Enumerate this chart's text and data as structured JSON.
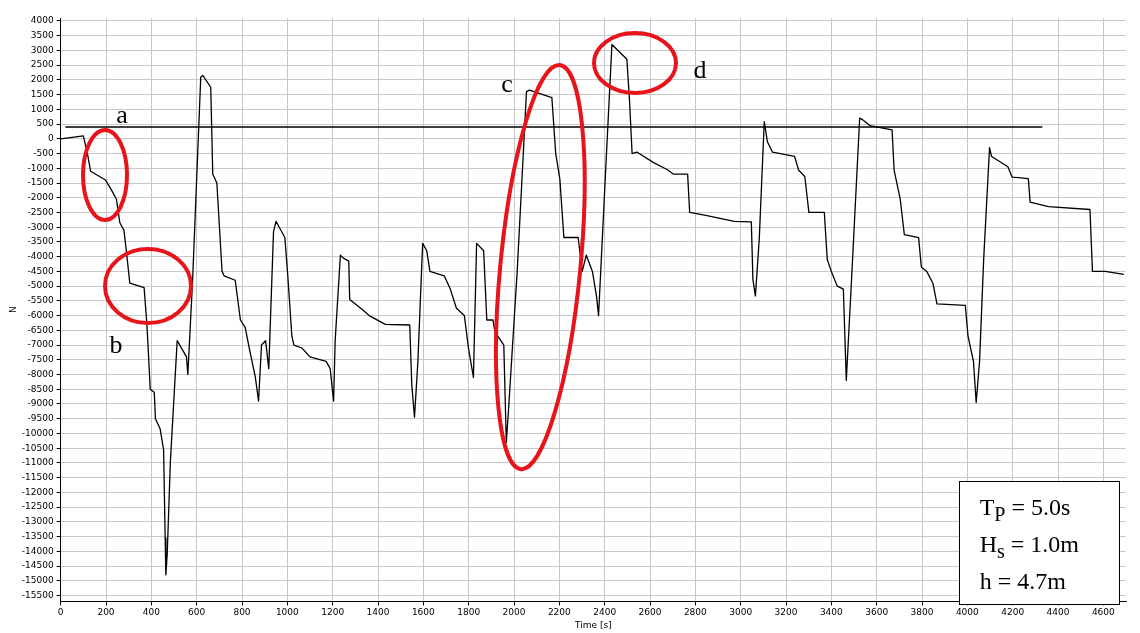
{
  "chart_data": {
    "type": "line",
    "xlabel": "Time [s]",
    "ylabel": "N",
    "xlim": [
      0,
      4700
    ],
    "ylim": [
      -15700,
      4100
    ],
    "xticks": [
      0,
      200,
      400,
      600,
      800,
      1000,
      1200,
      1400,
      1600,
      1800,
      2000,
      2200,
      2400,
      2600,
      2800,
      3000,
      3200,
      3400,
      3600,
      3800,
      4000,
      4200,
      4400,
      4600
    ],
    "yticks": [
      4000,
      3500,
      3000,
      2500,
      2000,
      1500,
      1000,
      500,
      0,
      -500,
      -1000,
      -1500,
      -2000,
      -2500,
      -3000,
      -3500,
      -4000,
      -4500,
      -5000,
      -5500,
      -6000,
      -6500,
      -7000,
      -7500,
      -8000,
      -8500,
      -9000,
      -9500,
      -10000,
      -10500,
      -11000,
      -11500,
      -12000,
      -12500,
      -13000,
      -13500,
      -14000,
      -14500,
      -15000,
      -15500
    ],
    "grid": true,
    "legend": false,
    "marker": "none",
    "line_style": "solid",
    "series": [
      {
        "color": "#000000",
        "x": [
          0,
          100,
          118,
          132,
          198,
          225,
          246,
          261,
          279,
          291,
          305,
          368,
          379,
          386,
          395,
          413,
          418,
          439,
          454,
          461,
          464,
          470,
          484,
          514,
          555,
          561,
          582,
          618,
          627,
          662,
          671,
          689,
          712,
          721,
          770,
          793,
          814,
          832,
          859,
          873,
          886,
          904,
          918,
          939,
          950,
          989,
          1002,
          1020,
          1029,
          1064,
          1100,
          1171,
          1189,
          1204,
          1211,
          1234,
          1247,
          1271,
          1275,
          1332,
          1361,
          1432,
          1540,
          1549,
          1561,
          1576,
          1597,
          1615,
          1629,
          1692,
          1719,
          1746,
          1781,
          1799,
          1821,
          1835,
          1866,
          1880,
          1907,
          1916,
          1955,
          1966,
          1975,
          2014,
          2038,
          2055,
          2068,
          2167,
          2184,
          2202,
          2220,
          2283,
          2301,
          2319,
          2346,
          2364,
          2373,
          2408,
          2432,
          2498,
          2510,
          2521,
          2542,
          2614,
          2677,
          2704,
          2766,
          2775,
          2846,
          2972,
          3047,
          3054,
          3065,
          3082,
          3104,
          3118,
          3140,
          3238,
          3256,
          3283,
          3301,
          3369,
          3382,
          3400,
          3426,
          3453,
          3466,
          3489,
          3525,
          3538,
          3570,
          3668,
          3677,
          3704,
          3722,
          3785,
          3797,
          3821,
          3848,
          3866,
          3991,
          4003,
          4027,
          4039,
          4054,
          4072,
          4098,
          4107,
          4179,
          4197,
          4269,
          4277,
          4358,
          4541,
          4552,
          4609,
          4690
        ],
        "values": [
          0,
          100,
          -500,
          -1100,
          -1400,
          -1750,
          -2050,
          -2850,
          -3100,
          -3900,
          -4900,
          -5050,
          -6150,
          -7100,
          -8500,
          -8600,
          -9500,
          -9850,
          -10550,
          -13550,
          -14800,
          -14100,
          -10950,
          -6850,
          -7400,
          -8000,
          -4800,
          2100,
          2150,
          1750,
          -1200,
          -1500,
          -4500,
          -4650,
          -4800,
          -6150,
          -6400,
          -7100,
          -8100,
          -8900,
          -7000,
          -6850,
          -7800,
          -3150,
          -2800,
          -3350,
          -4650,
          -6700,
          -7000,
          -7100,
          -7400,
          -7550,
          -7800,
          -8900,
          -6850,
          -3950,
          -4050,
          -4150,
          -5450,
          -5800,
          -6000,
          -6300,
          -6320,
          -8350,
          -9450,
          -7550,
          -3550,
          -3800,
          -4500,
          -4650,
          -5100,
          -5750,
          -6000,
          -7100,
          -8100,
          -3550,
          -3800,
          -6150,
          -6150,
          -6550,
          -7000,
          -10300,
          -9300,
          -4500,
          -950,
          1600,
          1650,
          1400,
          -500,
          -1350,
          -3350,
          -3350,
          -4500,
          -3950,
          -4500,
          -5350,
          -6000,
          -500,
          3200,
          2700,
          1250,
          -500,
          -450,
          -800,
          -1050,
          -1200,
          -1200,
          -2500,
          -2600,
          -2800,
          -2820,
          -4780,
          -5330,
          -3400,
          580,
          -100,
          -450,
          -600,
          -1070,
          -1280,
          -2500,
          -2500,
          -4100,
          -4500,
          -5000,
          -5100,
          -8200,
          -4800,
          700,
          650,
          450,
          300,
          -1070,
          -2050,
          -3250,
          -3350,
          -4350,
          -4500,
          -4900,
          -5600,
          -5650,
          -6700,
          -7550,
          -8950,
          -7550,
          -4100,
          -300,
          -600,
          -950,
          -1300,
          -1350,
          -2150,
          -2300,
          -2400,
          -4500,
          -4500,
          -4600
        ]
      },
      {
        "color": "#000000",
        "x": [
          21,
          4331
        ],
        "values": [
          400,
          400
        ]
      }
    ],
    "annotations": [
      "a",
      "b",
      "c",
      "d",
      "T$_{P}$ = 5.0s",
      "H$_{s}$ = 1.0m",
      "h = 4.7m"
    ]
  }
}
